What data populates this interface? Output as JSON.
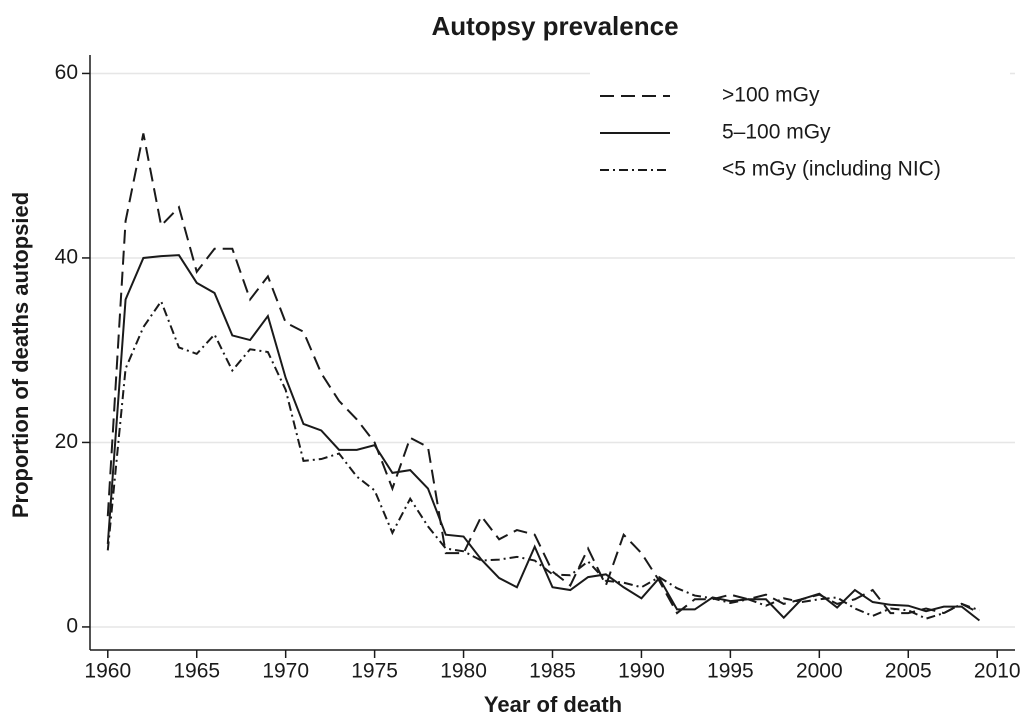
{
  "chart_data": {
    "type": "line",
    "title": "Autopsy prevalence",
    "x_label": "Year of death",
    "y_label": "Proportion of deaths autopsied",
    "x": [
      1960,
      1961,
      1962,
      1963,
      1964,
      1965,
      1966,
      1967,
      1968,
      1969,
      1970,
      1971,
      1972,
      1973,
      1974,
      1975,
      1976,
      1977,
      1978,
      1979,
      1980,
      1981,
      1982,
      1983,
      1984,
      1985,
      1986,
      1987,
      1988,
      1989,
      1990,
      1991,
      1992,
      1993,
      1994,
      1995,
      1996,
      1997,
      1998,
      1999,
      2000,
      2001,
      2002,
      2003,
      2004,
      2005,
      2006,
      2007,
      2008,
      2009
    ],
    "series": [
      {
        "name": ">100 mGy",
        "color": "#1a1a1a",
        "dash": "dashed",
        "values": [
          12,
          44,
          53.5,
          43.5,
          45.5,
          38.5,
          41,
          41,
          35.5,
          38,
          33,
          32,
          27.5,
          24.5,
          22.5,
          20,
          15,
          20.5,
          19.5,
          8,
          8,
          12,
          9.5,
          10.5,
          10,
          6,
          4.5,
          8.5,
          4.5,
          10,
          8,
          5,
          1.5,
          3,
          3,
          3.5,
          3,
          3.5,
          2.5,
          3,
          3.5,
          2.5,
          3,
          4,
          1.5,
          1.5,
          2,
          1.5,
          2.5,
          1.5
        ]
      },
      {
        "name": "5–100 mGy",
        "color": "#1a1a1a",
        "dash": "solid",
        "values": [
          9,
          35.5,
          40,
          40.2,
          40.3,
          37.3,
          36.2,
          31.6,
          31.1,
          33.7,
          27,
          22,
          21.3,
          19.2,
          19.2,
          19.7,
          16.7,
          17,
          15,
          10,
          9.8,
          7.3,
          5.3,
          4.3,
          8.7,
          4.3,
          4,
          5.4,
          5.7,
          4.3,
          3.1,
          5.3,
          1.9,
          1.9,
          3.2,
          2.8,
          3,
          3,
          1,
          3,
          3.6,
          2.1,
          4,
          2.7,
          2.4,
          2.3,
          1.7,
          2.2,
          2.2,
          0.7
        ]
      },
      {
        "name": "<5 mGy (including NIC)",
        "color": "#1a1a1a",
        "dash": "dashdot",
        "values": [
          8.3,
          28,
          32.5,
          35.3,
          30.3,
          29.6,
          31.7,
          27.8,
          30.1,
          29.8,
          25.7,
          18,
          18.2,
          18.8,
          16.3,
          14.8,
          10.2,
          13.9,
          10.9,
          8.5,
          8.2,
          7.2,
          7.3,
          7.6,
          7.2,
          5.7,
          5.6,
          7.1,
          5,
          4.8,
          4.3,
          5.4,
          4.2,
          3.4,
          3.1,
          2.6,
          3,
          2.3,
          3.1,
          2.7,
          3,
          3.2,
          2,
          1.2,
          2,
          1.8,
          0.9,
          1.5,
          2.5,
          1.8
        ]
      }
    ],
    "xlim": [
      1959,
      2011
    ],
    "xticks": [
      1960,
      1965,
      1970,
      1975,
      1980,
      1985,
      1990,
      1995,
      2000,
      2005,
      2010
    ],
    "ylim": [
      -2.5,
      62
    ],
    "yticks": [
      0,
      20,
      40,
      60
    ],
    "grid": true,
    "legend": "upper right"
  }
}
